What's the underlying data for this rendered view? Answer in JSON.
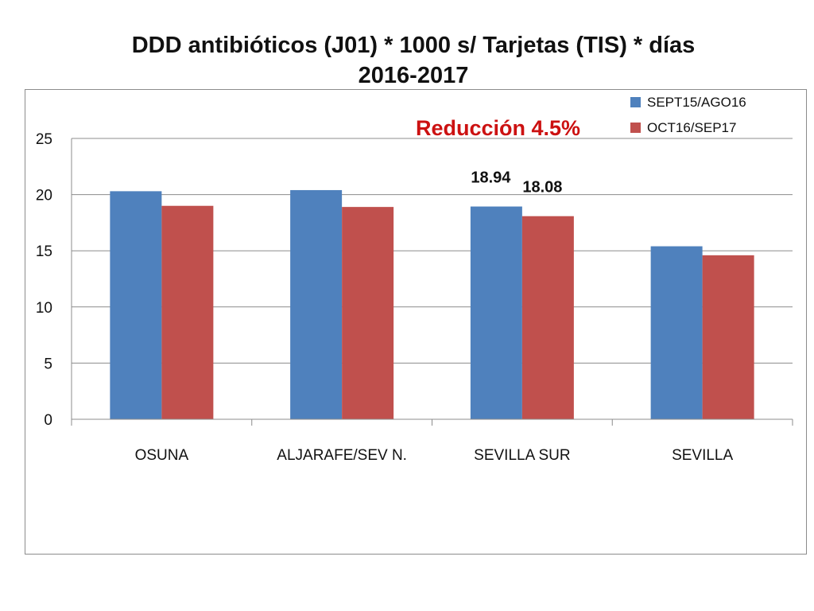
{
  "chart_data": {
    "type": "bar",
    "title": "DDD antibióticos (J01) * 1000 s/ Tarjetas (TIS) * días",
    "subtitle": "2016-2017",
    "categories": [
      "OSUNA",
      "ALJARAFE/SEV N.",
      "SEVILLA SUR",
      "SEVILLA"
    ],
    "series": [
      {
        "name": "SEPT15/AGO16",
        "values": [
          20.3,
          20.4,
          18.94,
          15.4
        ],
        "color": "#4f81bd"
      },
      {
        "name": "OCT16/SEP17",
        "values": [
          19.0,
          18.9,
          18.08,
          14.6
        ],
        "color": "#c0504d"
      }
    ],
    "ylim": [
      0,
      25
    ],
    "yticks": [
      0,
      5,
      10,
      15,
      20,
      25
    ],
    "grid": true,
    "legend": "top-right",
    "data_labels": [
      {
        "series": 0,
        "category": 2,
        "text": "18.94"
      },
      {
        "series": 1,
        "category": 2,
        "text": "18.08"
      }
    ],
    "annotation": {
      "text": "Reducción 4.5%",
      "color": "#cc1111"
    }
  }
}
